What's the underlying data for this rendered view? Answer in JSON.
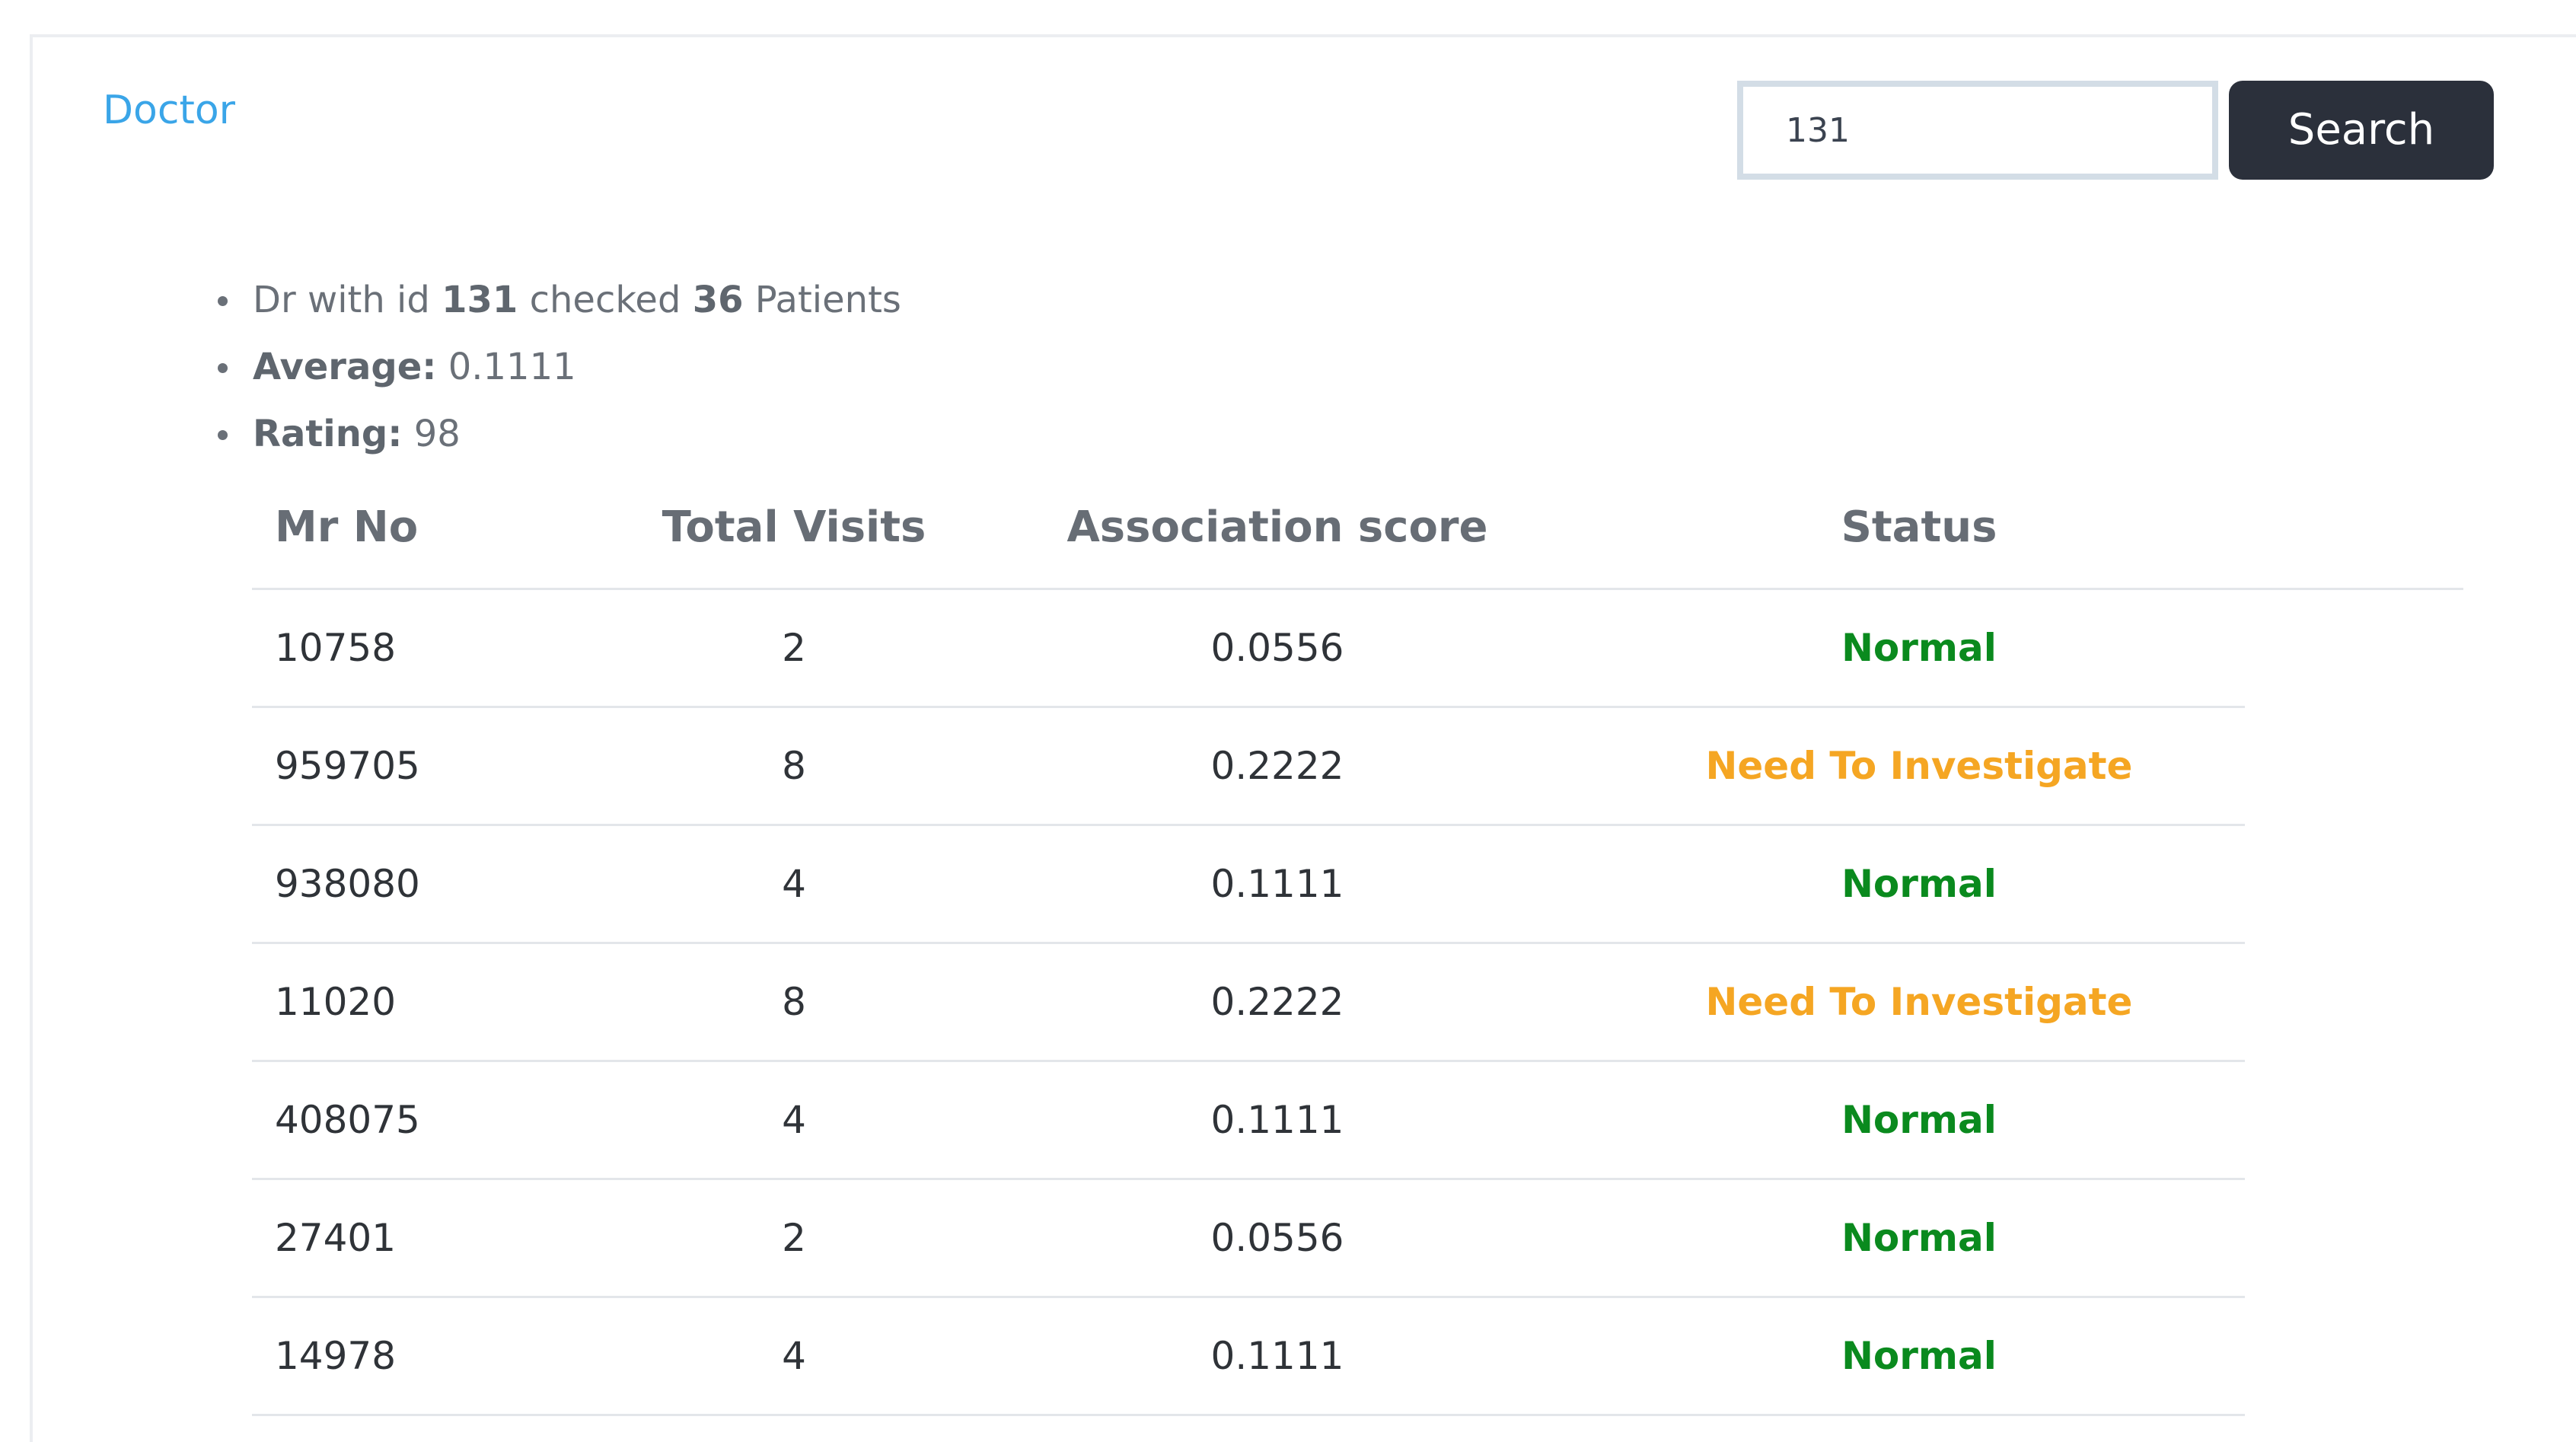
{
  "nav": {
    "doctor_link": "Doctor"
  },
  "search": {
    "value": "131",
    "button_label": "Search"
  },
  "summary": {
    "line1_prefix": "Dr with id",
    "doctor_id": "131",
    "line1_middle": "checked",
    "patient_count": "36",
    "line1_suffix": "Patients",
    "average_label": "Average:",
    "average_value": "0.1111",
    "rating_label": "Rating:",
    "rating_value": "98"
  },
  "table": {
    "headers": [
      "Mr No",
      "Total Visits",
      "Association score",
      "Status"
    ],
    "rows": [
      {
        "mr_no": "10758",
        "total_visits": "2",
        "score": "0.0556",
        "status": "Normal"
      },
      {
        "mr_no": "959705",
        "total_visits": "8",
        "score": "0.2222",
        "status": "Need To Investigate"
      },
      {
        "mr_no": "938080",
        "total_visits": "4",
        "score": "0.1111",
        "status": "Normal"
      },
      {
        "mr_no": "11020",
        "total_visits": "8",
        "score": "0.2222",
        "status": "Need To Investigate"
      },
      {
        "mr_no": "408075",
        "total_visits": "4",
        "score": "0.1111",
        "status": "Normal"
      },
      {
        "mr_no": "27401",
        "total_visits": "2",
        "score": "0.0556",
        "status": "Normal"
      },
      {
        "mr_no": "14978",
        "total_visits": "4",
        "score": "0.1111",
        "status": "Normal"
      }
    ]
  },
  "colors": {
    "link": "#3aa5e8",
    "button_bg": "#2b303b",
    "status_normal": "#0a8a1e",
    "status_investigate": "#f5a623"
  }
}
